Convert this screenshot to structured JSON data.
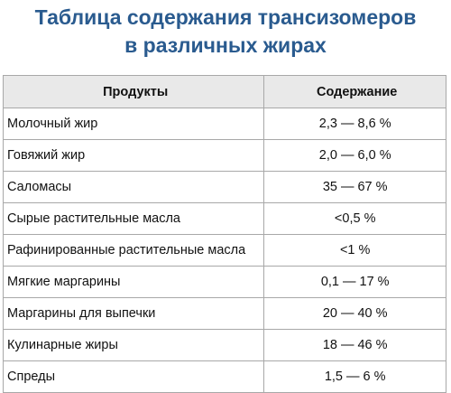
{
  "title": {
    "line1": "Таблица содержания трансизомеров",
    "line2": "в различных жирах"
  },
  "table": {
    "headers": [
      "Продукты",
      "Содержание"
    ],
    "rows": [
      {
        "product": "Молочный жир",
        "content": "2,3 — 8,6 %"
      },
      {
        "product": "Говяжий жир",
        "content": "2,0 — 6,0 %"
      },
      {
        "product": "Саломасы",
        "content": "35 — 67 %"
      },
      {
        "product": "Сырые растительные масла",
        "content": "<0,5 %"
      },
      {
        "product": "Рафинированные растительные масла",
        "content": "<1 %"
      },
      {
        "product": "Мягкие маргарины",
        "content": "0,1 — 17 %"
      },
      {
        "product": "Маргарины для выпечки",
        "content": "20 — 40 %"
      },
      {
        "product": "Кулинарные жиры",
        "content": "18 — 46 %"
      },
      {
        "product": "Спреды",
        "content": "1,5 — 6 %"
      }
    ]
  }
}
